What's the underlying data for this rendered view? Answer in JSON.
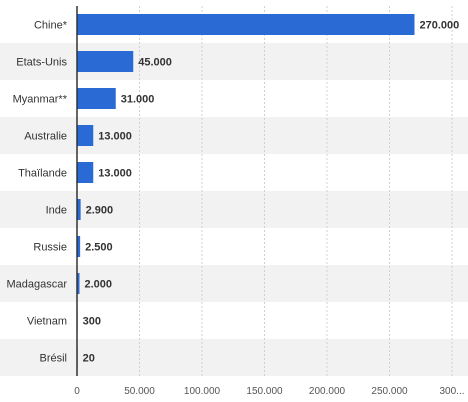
{
  "chart_data": {
    "type": "bar",
    "orientation": "horizontal",
    "title": "",
    "xlabel": "",
    "ylabel": "",
    "categories": [
      "Chine*",
      "Etats-Unis",
      "Myanmar**",
      "Australie",
      "Thaïlande",
      "Inde",
      "Russie",
      "Madagascar",
      "Vietnam",
      "Brésil"
    ],
    "values": [
      270000,
      45000,
      31000,
      13000,
      13000,
      2900,
      2500,
      2000,
      300,
      20
    ],
    "value_labels": [
      "270.000",
      "45.000",
      "31.000",
      "13.000",
      "13.000",
      "2.900",
      "2.500",
      "2.000",
      "300",
      "20"
    ],
    "xlim": [
      0,
      300000
    ],
    "x_ticks": [
      0,
      50000,
      100000,
      150000,
      200000,
      250000,
      300000
    ],
    "x_tick_labels": [
      "0",
      "50.000",
      "100.000",
      "150.000",
      "200.000",
      "250.000",
      "300..."
    ],
    "grid": true,
    "legend": "none",
    "colors": {
      "bar": "#2a6ad4",
      "row_alt": "#f2f2f2",
      "grid": "#d0d0d0",
      "axis": "#333333"
    }
  }
}
